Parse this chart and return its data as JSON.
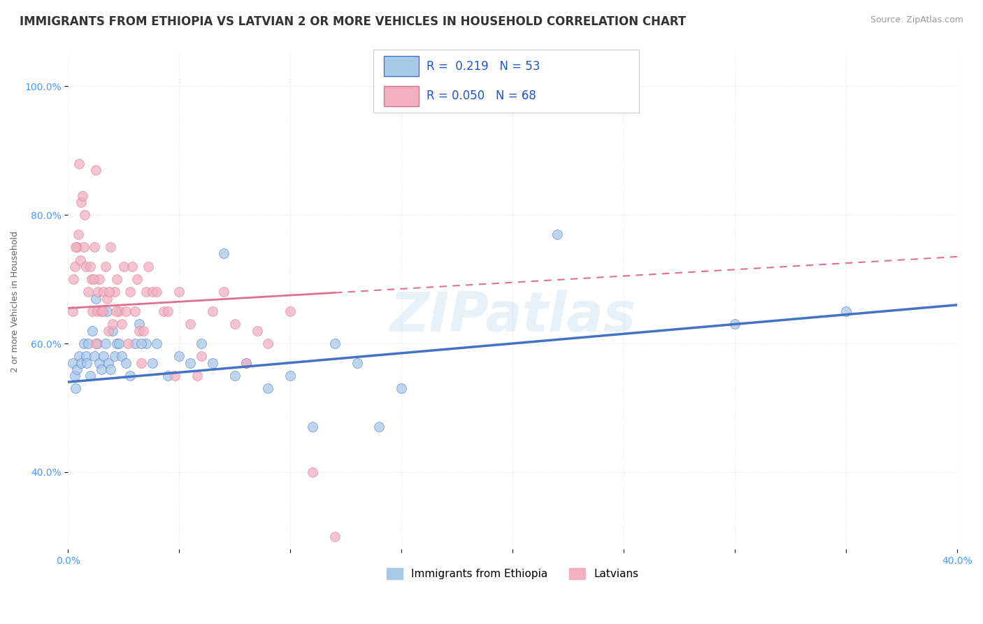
{
  "title": "IMMIGRANTS FROM ETHIOPIA VS LATVIAN 2 OR MORE VEHICLES IN HOUSEHOLD CORRELATION CHART",
  "source": "Source: ZipAtlas.com",
  "ylabel": "2 or more Vehicles in Household",
  "xlim": [
    0.0,
    40.0
  ],
  "ylim": [
    28.0,
    105.0
  ],
  "yticks": [
    40.0,
    60.0,
    80.0,
    100.0
  ],
  "ytick_labels": [
    "40.0%",
    "60.0%",
    "80.0%",
    "100.0%"
  ],
  "xticks": [
    0.0,
    5.0,
    10.0,
    15.0,
    20.0,
    25.0,
    30.0,
    35.0,
    40.0
  ],
  "xtick_labels": [
    "0.0%",
    "",
    "",
    "",
    "",
    "",
    "",
    "",
    "40.0%"
  ],
  "legend_label_blue": "Immigrants from Ethiopia",
  "legend_label_pink": "Latvians",
  "R_blue": 0.219,
  "N_blue": 53,
  "R_pink": 0.05,
  "N_pink": 68,
  "blue_color": "#a8c8e8",
  "pink_color": "#f0b0c0",
  "blue_line_color": "#4472c4",
  "pink_line_color": "#e07090",
  "background_color": "#ffffff",
  "grid_color": "#e0e0e0",
  "title_fontsize": 12,
  "axis_fontsize": 10,
  "blue_x": [
    0.2,
    0.3,
    0.4,
    0.5,
    0.6,
    0.7,
    0.8,
    0.9,
    1.0,
    1.1,
    1.2,
    1.3,
    1.4,
    1.5,
    1.6,
    1.7,
    1.8,
    1.9,
    2.0,
    2.1,
    2.2,
    2.4,
    2.6,
    2.8,
    3.0,
    3.2,
    3.5,
    3.8,
    4.0,
    4.5,
    5.0,
    5.5,
    6.0,
    6.5,
    7.0,
    7.5,
    8.0,
    9.0,
    10.0,
    11.0,
    12.0,
    13.0,
    14.0,
    15.0,
    0.35,
    0.85,
    1.25,
    1.75,
    2.3,
    3.3,
    22.0,
    30.0,
    35.0
  ],
  "blue_y": [
    57,
    55,
    56,
    58,
    57,
    60,
    58,
    60,
    55,
    62,
    58,
    60,
    57,
    56,
    58,
    60,
    57,
    56,
    62,
    58,
    60,
    58,
    57,
    55,
    60,
    63,
    60,
    57,
    60,
    55,
    58,
    57,
    60,
    57,
    74,
    55,
    57,
    53,
    55,
    47,
    60,
    57,
    47,
    53,
    53,
    57,
    67,
    65,
    60,
    60,
    77,
    63,
    65
  ],
  "pink_x": [
    0.2,
    0.25,
    0.3,
    0.4,
    0.5,
    0.55,
    0.6,
    0.7,
    0.75,
    0.8,
    0.9,
    1.0,
    1.05,
    1.1,
    1.2,
    1.25,
    1.3,
    1.35,
    1.4,
    1.5,
    1.6,
    1.7,
    1.75,
    1.8,
    1.9,
    2.0,
    2.1,
    2.2,
    2.3,
    2.4,
    2.5,
    2.6,
    2.7,
    2.8,
    2.9,
    3.0,
    3.1,
    3.2,
    3.4,
    3.5,
    3.6,
    3.8,
    4.0,
    4.3,
    4.5,
    5.0,
    5.5,
    6.0,
    6.5,
    7.0,
    7.5,
    8.0,
    8.5,
    9.0,
    10.0,
    11.0,
    12.0,
    0.45,
    0.65,
    1.15,
    1.55,
    1.85,
    2.15,
    3.3,
    4.8,
    5.8,
    0.35,
    1.25
  ],
  "pink_y": [
    65,
    70,
    72,
    75,
    88,
    73,
    82,
    75,
    80,
    72,
    68,
    72,
    70,
    65,
    75,
    87,
    65,
    68,
    70,
    65,
    68,
    72,
    67,
    62,
    75,
    63,
    68,
    70,
    65,
    63,
    72,
    65,
    60,
    68,
    72,
    65,
    70,
    62,
    62,
    68,
    72,
    68,
    68,
    65,
    65,
    68,
    63,
    58,
    65,
    68,
    63,
    57,
    62,
    60,
    65,
    40,
    30,
    77,
    83,
    70,
    65,
    68,
    65,
    57,
    55,
    55,
    75,
    60
  ],
  "watermark_text": "ZIPatlas",
  "pink_data_xmax": 12.0,
  "blue_data_xmax": 35.0
}
